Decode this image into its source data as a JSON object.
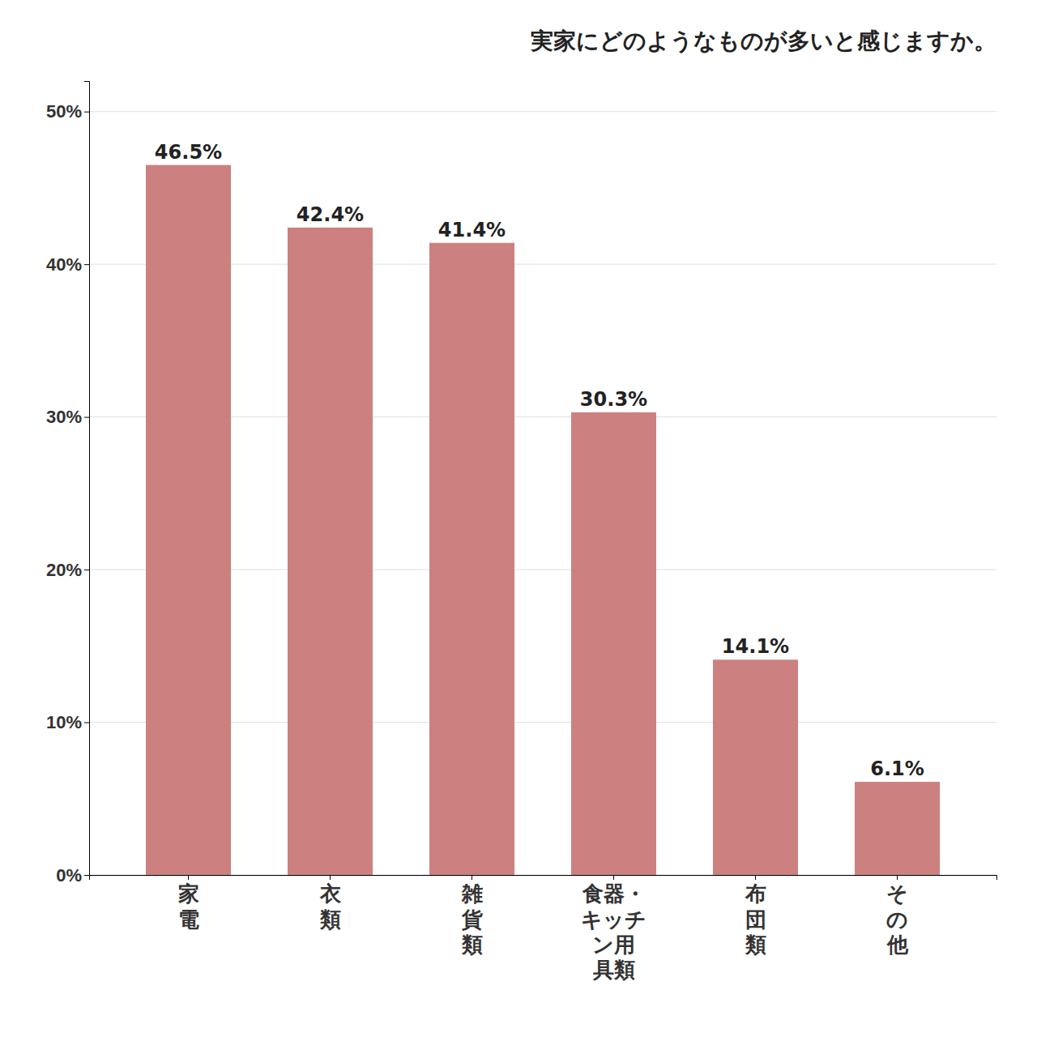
{
  "chart_data": {
    "type": "bar",
    "title": "実家にどのようなものが多いと感じますか。",
    "categories": [
      "家\n電",
      "衣\n類",
      "雑\n貨\n類",
      "食器・\nキッチ\nン用\n具類",
      "布\n団\n類",
      "そ\nの\n他"
    ],
    "values": [
      46.5,
      42.4,
      41.4,
      30.3,
      14.1,
      6.1
    ],
    "value_labels": [
      "46.5%",
      "42.4%",
      "41.4%",
      "30.3%",
      "14.1%",
      "6.1%"
    ],
    "color": "#cd8080",
    "ylim": [
      0,
      52
    ],
    "yticks": [
      {
        "value": 0,
        "label": "0%"
      },
      {
        "value": 10,
        "label": "10%"
      },
      {
        "value": 20,
        "label": "20%"
      },
      {
        "value": 30,
        "label": "30%"
      },
      {
        "value": 40,
        "label": "40%"
      },
      {
        "value": 50,
        "label": "50%"
      }
    ],
    "grid": true,
    "data_labels": true
  }
}
